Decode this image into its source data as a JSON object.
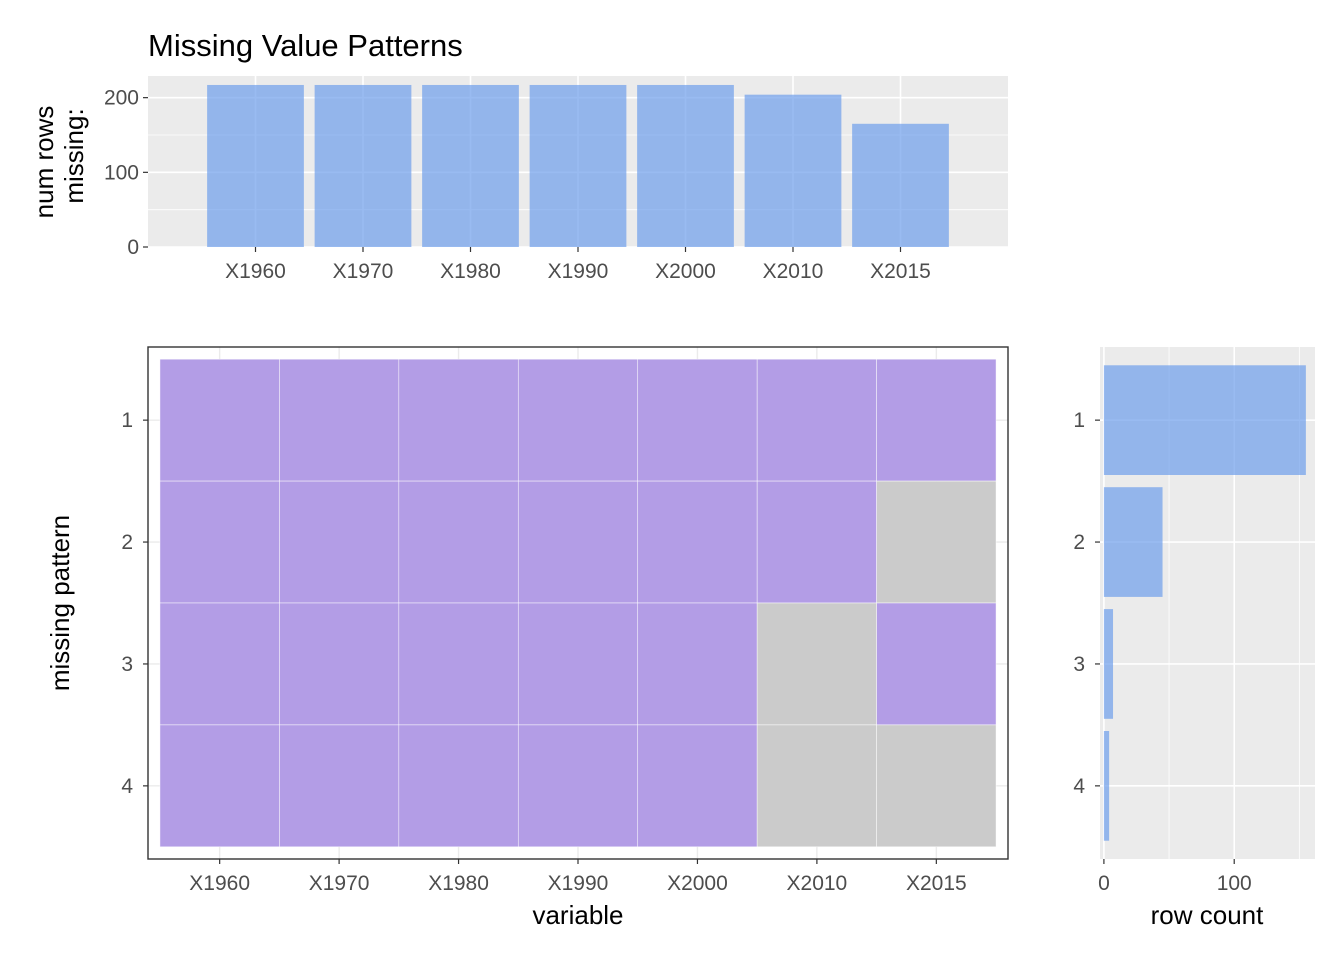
{
  "chart_data": [
    {
      "type": "bar",
      "title": "Missing Value Patterns",
      "ylabel": [
        "num rows",
        "missing:"
      ],
      "xlabel": "",
      "categories": [
        "X1960",
        "X1970",
        "X1980",
        "X1990",
        "X2000",
        "X2010",
        "X2015"
      ],
      "values": [
        217,
        217,
        217,
        217,
        217,
        204,
        165
      ],
      "ylim": [
        0,
        229
      ],
      "yticks": [
        0,
        100,
        200
      ],
      "grid": true,
      "color": "#6d9eeb"
    },
    {
      "type": "heatmap",
      "xlabel": "variable",
      "ylabel": "missing pattern",
      "columns": [
        "X1960",
        "X1970",
        "X1980",
        "X1990",
        "X2000",
        "X2010",
        "X2015"
      ],
      "rows": [
        "1",
        "2",
        "3",
        "4"
      ],
      "missing": [
        [
          true,
          true,
          true,
          true,
          true,
          true,
          true
        ],
        [
          true,
          true,
          true,
          true,
          true,
          true,
          false
        ],
        [
          true,
          true,
          true,
          true,
          true,
          false,
          true
        ],
        [
          true,
          true,
          true,
          true,
          true,
          false,
          false
        ]
      ],
      "missing_color": "#b39de6",
      "present_color": "#cbcbcb",
      "grid": true
    },
    {
      "type": "bar",
      "orientation": "horizontal",
      "xlabel": "row count",
      "ylabel": "",
      "categories": [
        "1",
        "2",
        "3",
        "4"
      ],
      "values": [
        155,
        45,
        7,
        4
      ],
      "xlim": [
        -3,
        162
      ],
      "xticks": [
        0,
        100
      ],
      "grid": true,
      "color": "#6d9eeb"
    }
  ]
}
